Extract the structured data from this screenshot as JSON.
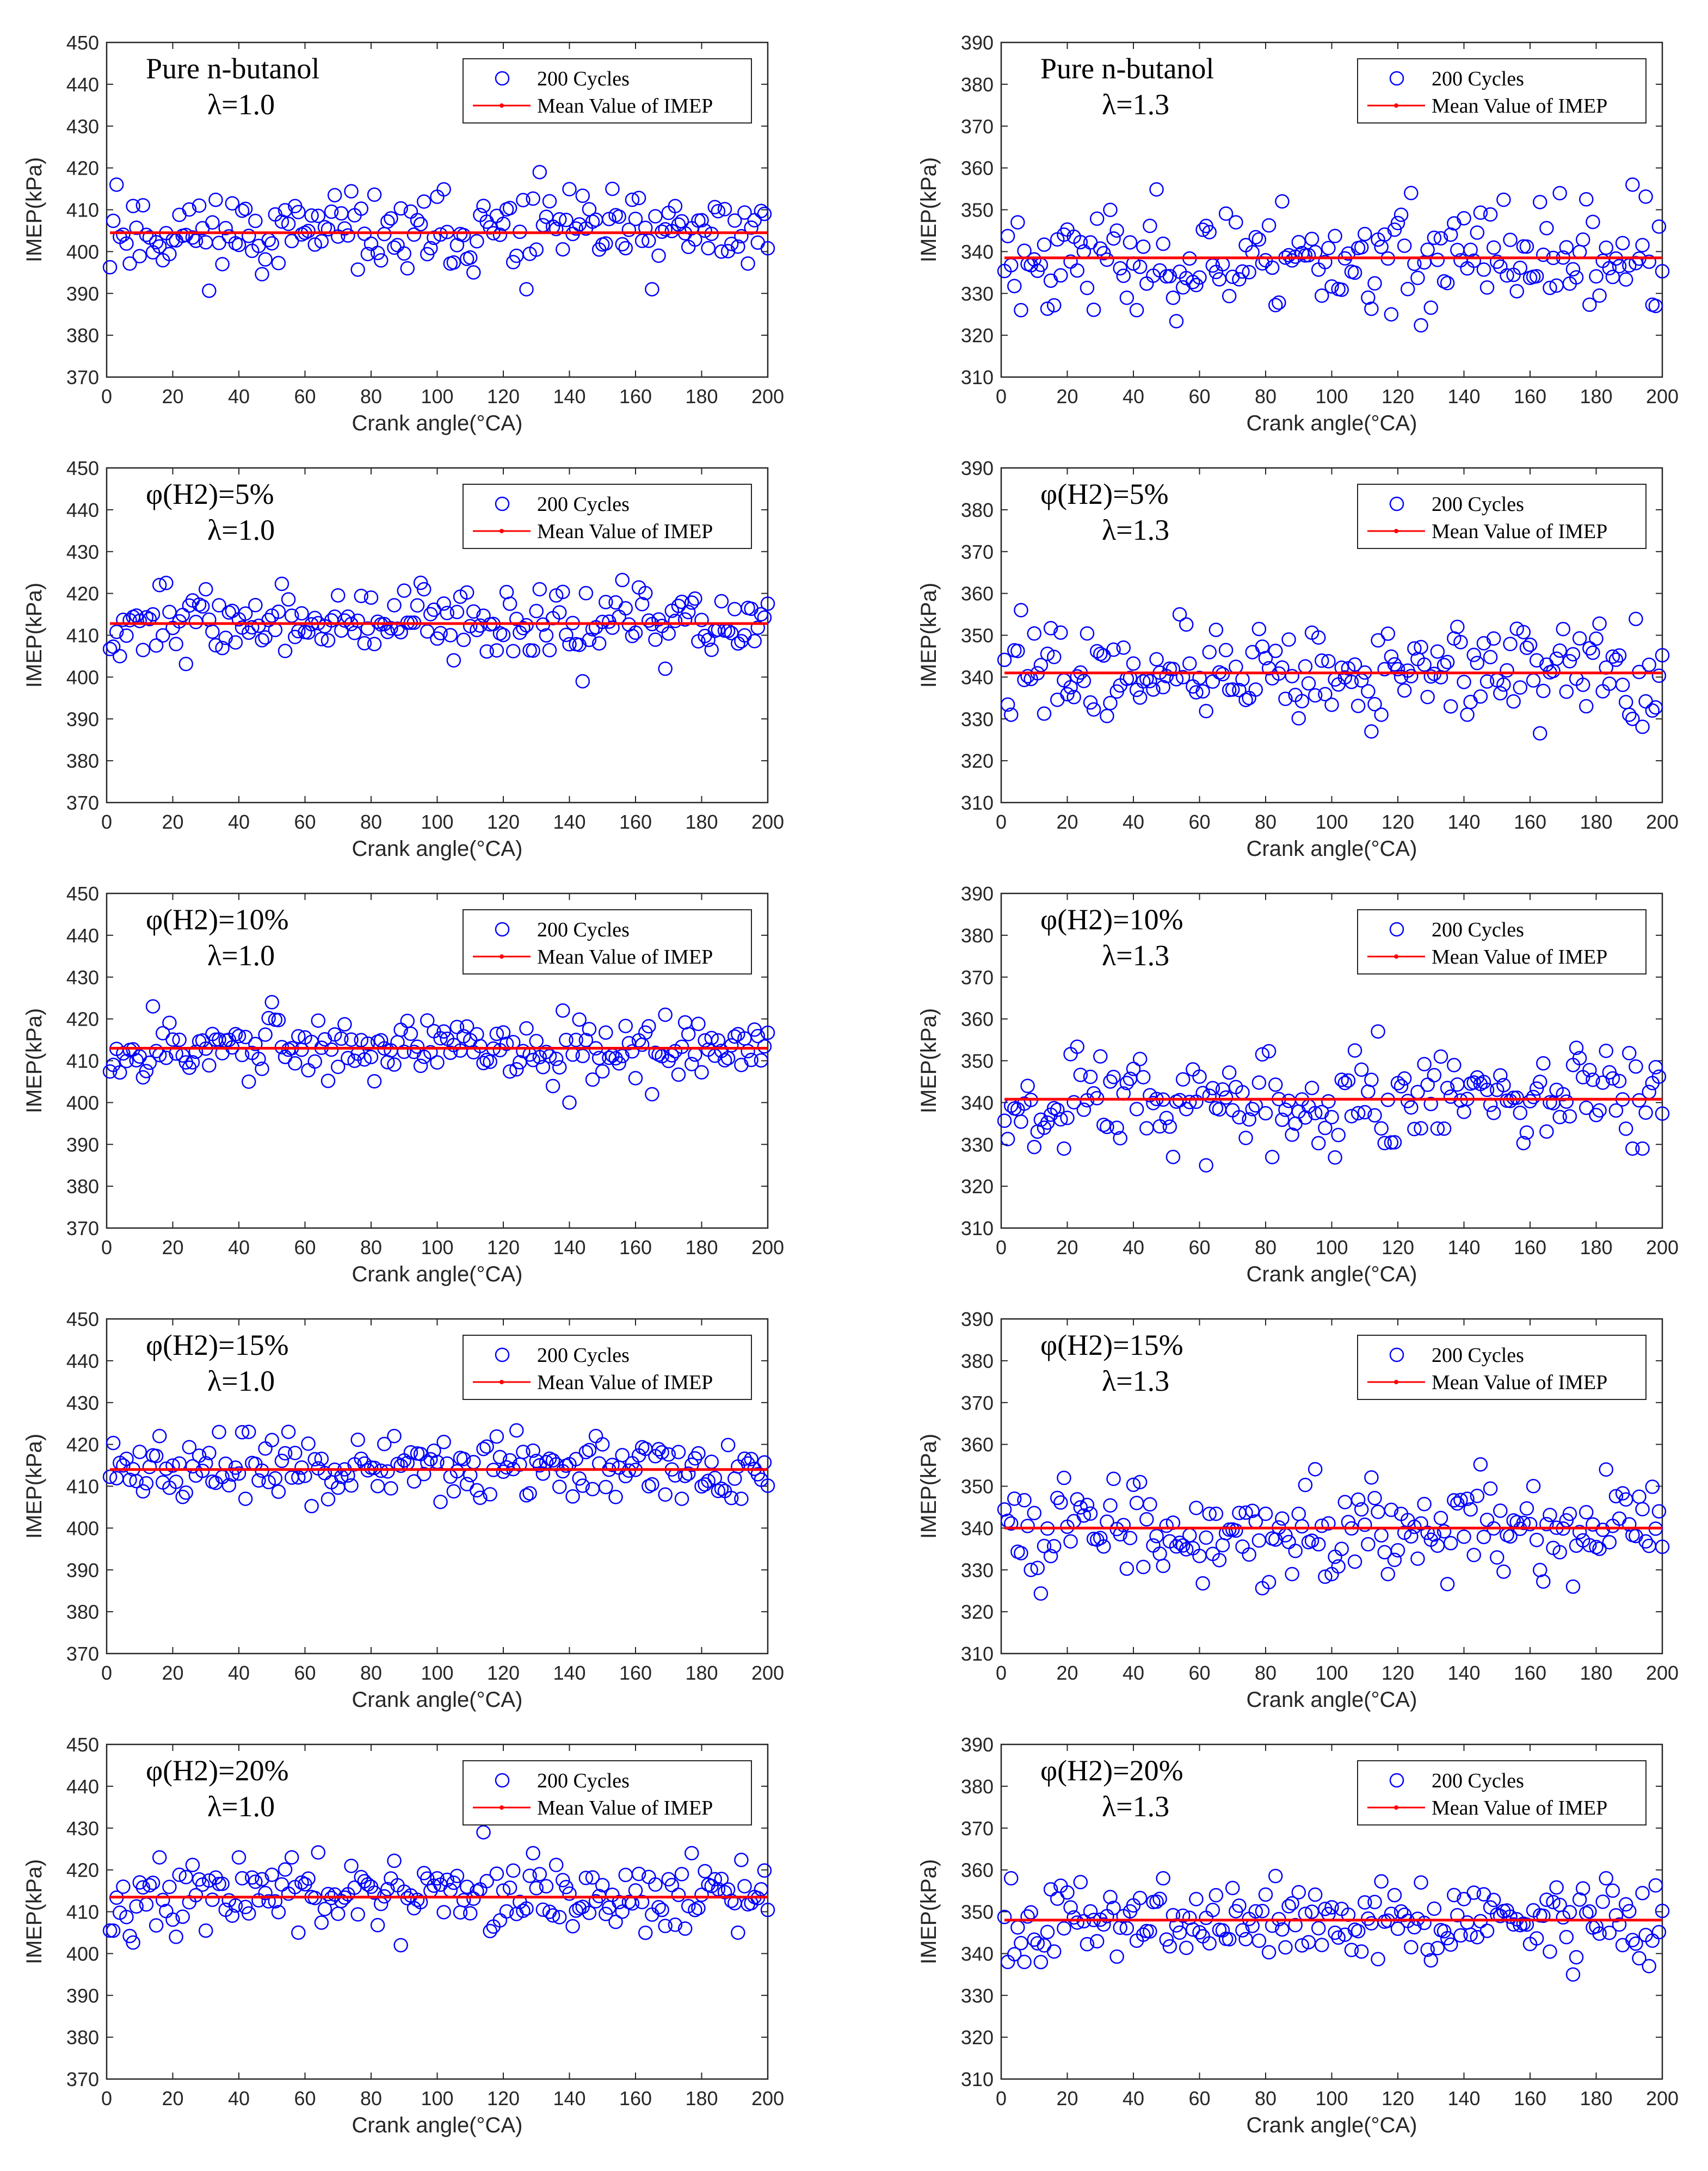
{
  "figure": {
    "colors": {
      "point": "#0000ff",
      "mean_line": "#ff0000",
      "axis": "#262626",
      "background": "#ffffff"
    },
    "legend": {
      "scatter_label": "200 Cycles",
      "line_label": "Mean Value of IMEP",
      "placement": "top-right"
    }
  },
  "chart_data": [
    {
      "type": "scatter",
      "annotation": [
        "Pure n-butanol",
        "λ=1.0"
      ],
      "xlabel": "Crank angle(°CA)",
      "ylabel": "IMEP(kPa)",
      "xlim": [
        0,
        200
      ],
      "ylim": [
        370,
        450
      ],
      "xticks": [
        0,
        20,
        40,
        60,
        80,
        100,
        120,
        140,
        160,
        180,
        200
      ],
      "yticks": [
        370,
        380,
        390,
        400,
        410,
        420,
        430,
        440,
        450
      ],
      "mean": 404.5,
      "spread": 4.5,
      "seed": 11,
      "outliers": [
        [
          3,
          416
        ],
        [
          28,
          411
        ],
        [
          131,
          419
        ],
        [
          153,
          415
        ],
        [
          127,
          391
        ],
        [
          165,
          391
        ],
        [
          35,
          397
        ],
        [
          91,
          396
        ]
      ]
    },
    {
      "type": "scatter",
      "annotation": [
        "Pure n-butanol",
        "λ=1.3"
      ],
      "xlabel": "Crank angle(°CA)",
      "ylabel": "IMEP(kPa)",
      "xlim": [
        0,
        200
      ],
      "ylim": [
        310,
        390
      ],
      "xticks": [
        0,
        20,
        40,
        60,
        80,
        100,
        120,
        140,
        160,
        180,
        200
      ],
      "yticks": [
        310,
        320,
        330,
        340,
        350,
        360,
        370,
        380,
        390
      ],
      "mean": 338.5,
      "spread": 6.0,
      "seed": 23,
      "outliers": [
        [
          124,
          354
        ],
        [
          191,
          356
        ],
        [
          5,
          347
        ],
        [
          85,
          352
        ],
        [
          6,
          326
        ],
        [
          41,
          326
        ],
        [
          118,
          325
        ],
        [
          198,
          327
        ]
      ]
    },
    {
      "type": "scatter",
      "annotation": [
        "φ(H2)=5%",
        "λ=1.0"
      ],
      "xlabel": "Crank angle(°CA)",
      "ylabel": "IMEP(kPa)",
      "xlim": [
        0,
        200
      ],
      "ylim": [
        370,
        450
      ],
      "xticks": [
        0,
        20,
        40,
        60,
        80,
        100,
        120,
        140,
        160,
        180,
        200
      ],
      "yticks": [
        370,
        380,
        390,
        400,
        410,
        420,
        430,
        440,
        450
      ],
      "mean": 412.8,
      "spread": 3.8,
      "seed": 37,
      "outliers": [
        [
          4,
          423
        ],
        [
          16,
          422
        ],
        [
          30,
          421
        ],
        [
          96,
          421
        ],
        [
          131,
          421
        ],
        [
          4,
          405
        ],
        [
          144,
          399
        ],
        [
          169,
          402
        ],
        [
          105,
          404
        ]
      ]
    },
    {
      "type": "scatter",
      "annotation": [
        "φ(H2)=5%",
        "λ=1.3"
      ],
      "xlabel": "Crank angle(°CA)",
      "ylabel": "IMEP(kPa)",
      "xlim": [
        0,
        200
      ],
      "ylim": [
        310,
        390
      ],
      "xticks": [
        0,
        20,
        40,
        60,
        80,
        100,
        120,
        140,
        160,
        180,
        200
      ],
      "yticks": [
        310,
        320,
        330,
        340,
        350,
        360,
        370,
        380,
        390
      ],
      "mean": 341.0,
      "spread": 5.5,
      "seed": 41,
      "outliers": [
        [
          6,
          356
        ],
        [
          54,
          355
        ],
        [
          138,
          352
        ],
        [
          112,
          327
        ],
        [
          3,
          331
        ],
        [
          115,
          331
        ],
        [
          190,
          331
        ],
        [
          197,
          332
        ]
      ]
    },
    {
      "type": "scatter",
      "annotation": [
        "φ(H2)=10%",
        "λ=1.0"
      ],
      "xlabel": "Crank angle(°CA)",
      "ylabel": "IMEP(kPa)",
      "xlim": [
        0,
        200
      ],
      "ylim": [
        370,
        450
      ],
      "xticks": [
        0,
        20,
        40,
        60,
        80,
        100,
        120,
        140,
        160,
        180,
        200
      ],
      "yticks": [
        370,
        380,
        390,
        400,
        410,
        420,
        430,
        440,
        450
      ],
      "mean": 413.0,
      "spread": 3.5,
      "seed": 53,
      "outliers": [
        [
          14,
          423
        ],
        [
          50,
          424
        ],
        [
          138,
          422
        ],
        [
          169,
          421
        ],
        [
          140,
          400
        ],
        [
          165,
          402
        ],
        [
          43,
          405
        ]
      ]
    },
    {
      "type": "scatter",
      "annotation": [
        "φ(H2)=10%",
        "λ=1.3"
      ],
      "xlabel": "Crank angle(°CA)",
      "ylabel": "IMEP(kPa)",
      "xlim": [
        0,
        200
      ],
      "ylim": [
        310,
        390
      ],
      "xticks": [
        0,
        20,
        40,
        60,
        80,
        100,
        120,
        140,
        160,
        180,
        200
      ],
      "yticks": [
        310,
        320,
        330,
        340,
        350,
        360,
        370,
        380,
        390
      ],
      "mean": 340.8,
      "spread": 5.5,
      "seed": 67,
      "outliers": [
        [
          114,
          357
        ],
        [
          133,
          351
        ],
        [
          19,
          329
        ],
        [
          52,
          327
        ],
        [
          62,
          325
        ],
        [
          191,
          329
        ],
        [
          194,
          329
        ]
      ]
    },
    {
      "type": "scatter",
      "annotation": [
        "φ(H2)=15%",
        "λ=1.0"
      ],
      "xlabel": "Crank angle(°CA)",
      "ylabel": "IMEP(kPa)",
      "xlim": [
        0,
        200
      ],
      "ylim": [
        370,
        450
      ],
      "xticks": [
        0,
        20,
        40,
        60,
        80,
        100,
        120,
        140,
        160,
        180,
        200
      ],
      "yticks": [
        370,
        380,
        390,
        400,
        410,
        420,
        430,
        440,
        450
      ],
      "mean": 414.0,
      "spread": 3.5,
      "seed": 71,
      "outliers": [
        [
          16,
          422
        ],
        [
          43,
          423
        ],
        [
          55,
          423
        ],
        [
          148,
          422
        ],
        [
          87,
          422
        ],
        [
          42,
          407
        ],
        [
          192,
          407
        ],
        [
          174,
          407
        ]
      ]
    },
    {
      "type": "scatter",
      "annotation": [
        "φ(H2)=15%",
        "λ=1.3"
      ],
      "xlabel": "Crank angle(°CA)",
      "ylabel": "IMEP(kPa)",
      "xlim": [
        0,
        200
      ],
      "ylim": [
        310,
        390
      ],
      "xticks": [
        0,
        20,
        40,
        60,
        80,
        100,
        120,
        140,
        160,
        180,
        200
      ],
      "yticks": [
        310,
        320,
        330,
        340,
        350,
        360,
        370,
        380,
        390
      ],
      "mean": 340.0,
      "spread": 5.5,
      "seed": 83,
      "outliers": [
        [
          19,
          352
        ],
        [
          42,
          351
        ],
        [
          183,
          354
        ],
        [
          173,
          326
        ],
        [
          88,
          329
        ],
        [
          100,
          329
        ],
        [
          117,
          329
        ],
        [
          9,
          330
        ]
      ]
    },
    {
      "type": "scatter",
      "annotation": [
        "φ(H2)=20%",
        "λ=1.0"
      ],
      "xlabel": "Crank angle(°CA)",
      "ylabel": "IMEP(kPa)",
      "xlim": [
        0,
        200
      ],
      "ylim": [
        370,
        450
      ],
      "xticks": [
        0,
        20,
        40,
        60,
        80,
        100,
        120,
        140,
        160,
        180,
        200
      ],
      "yticks": [
        370,
        380,
        390,
        400,
        410,
        420,
        430,
        440,
        450
      ],
      "mean": 413.5,
      "spread": 4.0,
      "seed": 97,
      "outliers": [
        [
          114,
          429
        ],
        [
          56,
          423
        ],
        [
          16,
          423
        ],
        [
          177,
          424
        ],
        [
          129,
          424
        ],
        [
          89,
          402
        ],
        [
          21,
          404
        ],
        [
          191,
          405
        ]
      ]
    },
    {
      "type": "scatter",
      "annotation": [
        "φ(H2)=20%",
        "λ=1.3"
      ],
      "xlabel": "Crank angle(°CA)",
      "ylabel": "IMEP(kPa)",
      "xlim": [
        0,
        200
      ],
      "ylim": [
        310,
        390
      ],
      "xticks": [
        0,
        20,
        40,
        60,
        80,
        100,
        120,
        140,
        160,
        180,
        200
      ],
      "yticks": [
        310,
        320,
        330,
        340,
        350,
        360,
        370,
        380,
        390
      ],
      "mean": 348.0,
      "spread": 4.5,
      "seed": 101,
      "outliers": [
        [
          3,
          358
        ],
        [
          49,
          358
        ],
        [
          127,
          357
        ],
        [
          183,
          358
        ],
        [
          2,
          338
        ],
        [
          7,
          338
        ],
        [
          173,
          335
        ],
        [
          196,
          337
        ]
      ]
    }
  ]
}
